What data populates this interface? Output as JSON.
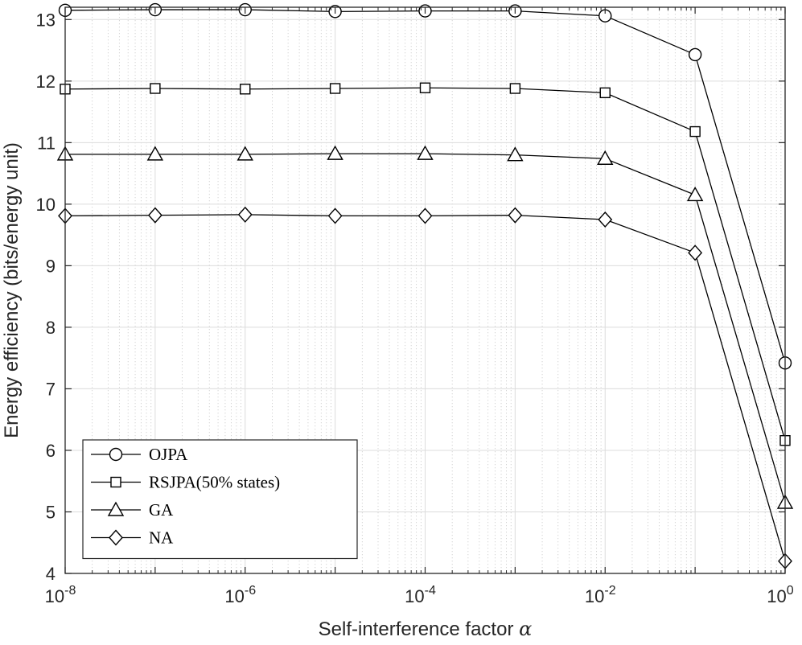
{
  "chart_data": {
    "type": "line",
    "xscale": "log",
    "x": [
      1e-08,
      1e-07,
      1e-06,
      1e-05,
      0.0001,
      0.001,
      0.01,
      0.1,
      1
    ],
    "xlim": [
      1e-08,
      1
    ],
    "ylim": [
      4,
      13.2
    ],
    "xticks": [
      {
        "value": 1e-08,
        "base": "10",
        "exp": "-8"
      },
      {
        "value": 1e-06,
        "base": "10",
        "exp": "-6"
      },
      {
        "value": 0.0001,
        "base": "10",
        "exp": "-4"
      },
      {
        "value": 0.01,
        "base": "10",
        "exp": "-2"
      },
      {
        "value": 1,
        "base": "10",
        "exp": "0"
      }
    ],
    "yticks": [
      4,
      5,
      6,
      7,
      8,
      9,
      10,
      11,
      12,
      13
    ],
    "xlabel": "Self-interference factor ",
    "xlabel_symbol": "α",
    "ylabel": "Energy efficiency (bits/energy unit)",
    "grid": true,
    "minor_grid": true,
    "legend_position": "lower-left",
    "line_color": "#000000",
    "series": [
      {
        "name": "OJPA",
        "marker": "circle",
        "values": [
          13.15,
          13.16,
          13.16,
          13.13,
          13.14,
          13.14,
          13.06,
          12.43,
          7.42
        ]
      },
      {
        "name": "RSJPA(50% states)",
        "marker": "square",
        "values": [
          11.87,
          11.88,
          11.87,
          11.88,
          11.89,
          11.88,
          11.81,
          11.18,
          6.16
        ]
      },
      {
        "name": "GA",
        "marker": "triangle",
        "values": [
          10.81,
          10.81,
          10.81,
          10.82,
          10.82,
          10.8,
          10.74,
          10.15,
          5.15
        ]
      },
      {
        "name": "NA",
        "marker": "diamond",
        "values": [
          9.81,
          9.82,
          9.83,
          9.81,
          9.81,
          9.82,
          9.75,
          9.21,
          4.2
        ]
      }
    ]
  }
}
